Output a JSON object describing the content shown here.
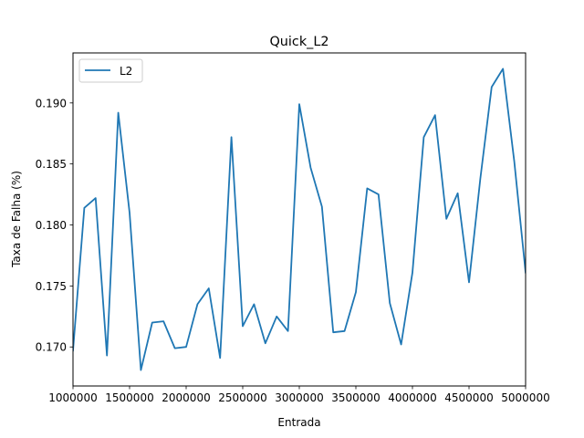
{
  "chart_data": {
    "type": "line",
    "title": "Quick_L2",
    "xlabel": "Entrada",
    "ylabel": "Taxa de Falha (%)",
    "xlim": [
      1000000,
      5000000
    ],
    "ylim": [
      0.1668,
      0.1941
    ],
    "xticks": [
      1000000,
      1500000,
      2000000,
      2500000,
      3000000,
      3500000,
      4000000,
      4500000,
      5000000
    ],
    "xtick_labels": [
      "1000000",
      "1500000",
      "2000000",
      "2500000",
      "3000000",
      "3500000",
      "4000000",
      "4500000",
      "5000000"
    ],
    "yticks": [
      0.17,
      0.175,
      0.18,
      0.185,
      0.19
    ],
    "ytick_labels": [
      "0.170",
      "0.175",
      "0.180",
      "0.185",
      "0.190"
    ],
    "grid": false,
    "legend_position": "top-left",
    "series": [
      {
        "name": "L2",
        "color": "#1f77b4",
        "x": [
          1000000,
          1100000,
          1200000,
          1300000,
          1400000,
          1500000,
          1600000,
          1700000,
          1800000,
          1900000,
          2000000,
          2100000,
          2200000,
          2300000,
          2400000,
          2500000,
          2600000,
          2700000,
          2800000,
          2900000,
          3000000,
          3100000,
          3200000,
          3300000,
          3400000,
          3500000,
          3600000,
          3700000,
          3800000,
          3900000,
          4000000,
          4100000,
          4200000,
          4300000,
          4400000,
          4500000,
          4600000,
          4700000,
          4800000,
          4900000,
          5000000
        ],
        "values": [
          0.1697,
          0.1814,
          0.1822,
          0.1693,
          0.1892,
          0.181,
          0.1681,
          0.172,
          0.1721,
          0.1699,
          0.17,
          0.1735,
          0.1748,
          0.1691,
          0.1872,
          0.1717,
          0.1735,
          0.1703,
          0.1725,
          0.1713,
          0.1899,
          0.1847,
          0.1815,
          0.1712,
          0.1713,
          0.1745,
          0.183,
          0.1825,
          0.1736,
          0.1702,
          0.1761,
          0.1872,
          0.189,
          0.1805,
          0.1826,
          0.1753,
          0.1838,
          0.1913,
          0.1928,
          0.1852,
          0.1761
        ]
      }
    ]
  }
}
